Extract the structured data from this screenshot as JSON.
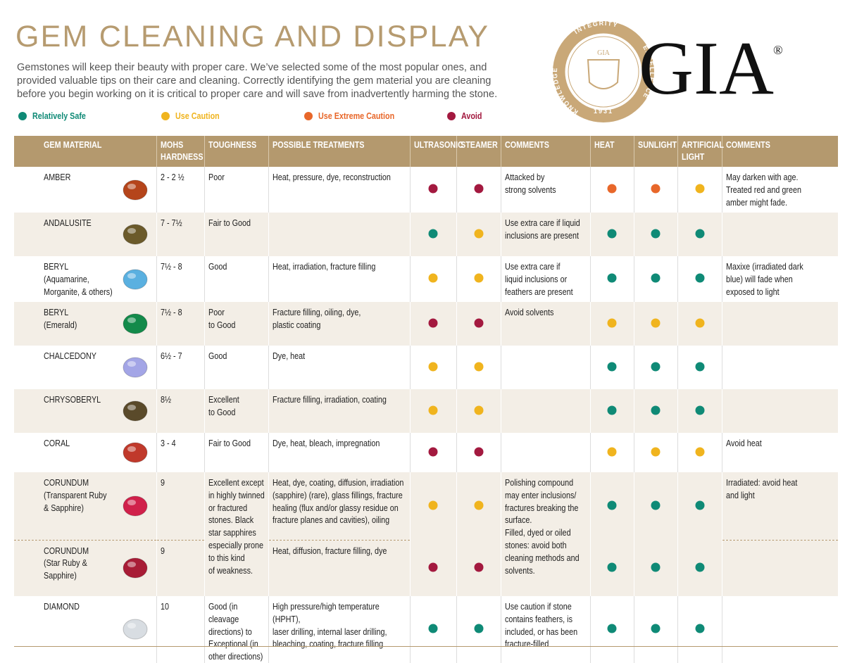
{
  "header": {
    "title": "GEM CLEANING AND DISPLAY",
    "intro": "Gemstones will keep their beauty with proper care. We’ve selected some of the most popular ones, and\nprovided valuable tips on their care and cleaning. Correctly identifying the gem material you are cleaning\nbefore you begin working on it is critical to proper care and will save from inadvertently harming the stone."
  },
  "logo": {
    "name": "GIA",
    "mark": "®",
    "seal_top": "INTEGRITY",
    "seal_left": "KNOWLEDGE",
    "seal_right": "EXCELLENCE",
    "seal_bottom": "1931",
    "seal_center": "GIA"
  },
  "legend": [
    {
      "label": "Relatively Safe",
      "color": "#0f8a76"
    },
    {
      "label": "Use Caution",
      "color": "#f0b41e"
    },
    {
      "label": "Use Extreme Caution",
      "color": "#e8672a"
    },
    {
      "label": "Avoid",
      "color": "#a3193f"
    }
  ],
  "table": {
    "columns": {
      "material": "GEM MATERIAL",
      "hardness": "MOHS\nHARDNESS",
      "toughness": "TOUGHNESS",
      "treatments": "POSSIBLE TREATMENTS",
      "ultrasonic": "ULTRASONIC",
      "steamer": "STEAMER",
      "comments": "COMMENTS",
      "heat": "HEAT",
      "sunlight": "SUNLIGHT",
      "artificial_light": "ARTIFICIAL\nLIGHT",
      "comments_2": "COMMENTS"
    },
    "rows": [
      {
        "material": "AMBER",
        "hardness": "2 - 2 ½",
        "toughness": "Poor",
        "treatments": "Heat, pressure, dye, reconstruction",
        "ultrasonic": 3,
        "steamer": 3,
        "comments": "Attacked by\nstrong solvents",
        "heat": 2,
        "sunlight": 2,
        "artificial_light": 1,
        "comments_2": "May darken with age.\nTreated red and green\namber might fade."
      },
      {
        "material": "ANDALUSITE",
        "hardness": "7 - 7½",
        "toughness": "Fair to Good",
        "ultrasonic": 0,
        "steamer": 1,
        "comments": "Use extra care if liquid\ninclusions are present",
        "heat": 0,
        "sunlight": 0,
        "artificial_light": 0
      },
      {
        "material": "BERYL\n(Aquamarine,\nMorganite, & others)",
        "hardness": "7½ - 8",
        "toughness": "Good",
        "treatments": "Heat, irradiation, fracture filling",
        "ultrasonic": 1,
        "steamer": 1,
        "comments": "Use extra care if\nliquid inclusions or\nfeathers are present",
        "heat": 0,
        "sunlight": 0,
        "artificial_light": 0,
        "comments_2": "Maxixe (irradiated dark\nblue) will fade when\nexposed to light"
      },
      {
        "material": "BERYL\n(Emerald)",
        "hardness": "7½ - 8",
        "toughness": "Poor\nto Good",
        "treatments": "Fracture filling, oiling, dye,\nplastic coating",
        "ultrasonic": 3,
        "steamer": 3,
        "comments": "Avoid solvents",
        "heat": 1,
        "sunlight": 1,
        "artificial_light": 1
      },
      {
        "material": "CHALCEDONY",
        "hardness": "6½ - 7",
        "toughness": "Good",
        "treatments": "Dye, heat",
        "ultrasonic": 1,
        "steamer": 1,
        "heat": 0,
        "sunlight": 0,
        "artificial_light": 0
      },
      {
        "material": "CHRYSOBERYL",
        "hardness": "8½",
        "toughness": "Excellent\nto Good",
        "treatments": "Fracture filling, irradiation, coating",
        "ultrasonic": 1,
        "steamer": 1,
        "heat": 0,
        "sunlight": 0,
        "artificial_light": 0
      },
      {
        "material": "CORAL",
        "hardness": "3 - 4",
        "toughness": "Fair to Good",
        "treatments": "Dye, heat, bleach, impregnation",
        "ultrasonic": 3,
        "steamer": 3,
        "heat": 1,
        "sunlight": 1,
        "artificial_light": 1,
        "comments_2": "Avoid heat"
      },
      {
        "toughness": "Excellent except\nin highly twinned\nor fractured\nstones. Black\nstar sapphires\nespecially prone\nto this kind\nof weakness.",
        "comments": "Polishing compound\nmay enter inclusions/\nfractures breaking the\nsurface.\nFilled, dyed or oiled\nstones: avoid both\ncleaning methods and\nsolvents.",
        "varieties": [
          {
            "material": "CORUNDUM\n(Transparent Ruby\n& Sapphire)",
            "hardness": "9",
            "treatments": "Heat, dye, coating, diffusion, irradiation\n(sapphire) (rare), glass fillings, fracture\nhealing (flux and/or glassy residue on\nfracture planes and cavities), oiling",
            "ultrasonic": 1,
            "steamer": 1,
            "heat": 0,
            "sunlight": 0,
            "artificial_light": 0,
            "comments_2": "Irradiated: avoid heat\nand light"
          },
          {
            "material": "CORUNDUM\n(Star Ruby &\nSapphire)",
            "hardness": "9",
            "treatments": "Heat, diffusion, fracture filling, dye",
            "ultrasonic": 3,
            "steamer": 3,
            "heat": 0,
            "sunlight": 0,
            "artificial_light": 0
          }
        ]
      },
      {
        "material": "DIAMOND",
        "hardness": "10",
        "toughness": "Good (in cleavage\ndirections) to\nExceptional (in\nother directions)",
        "treatments": "High pressure/high temperature (HPHT),\nlaser drilling, internal laser drilling,\nbleaching, coating, fracture filling",
        "ultrasonic": 0,
        "steamer": 0,
        "comments": "Use caution if stone\ncontains feathers, is\nincluded, or has been\nfracture-filled",
        "heat": 0,
        "sunlight": 0,
        "artificial_light": 0
      }
    ]
  }
}
